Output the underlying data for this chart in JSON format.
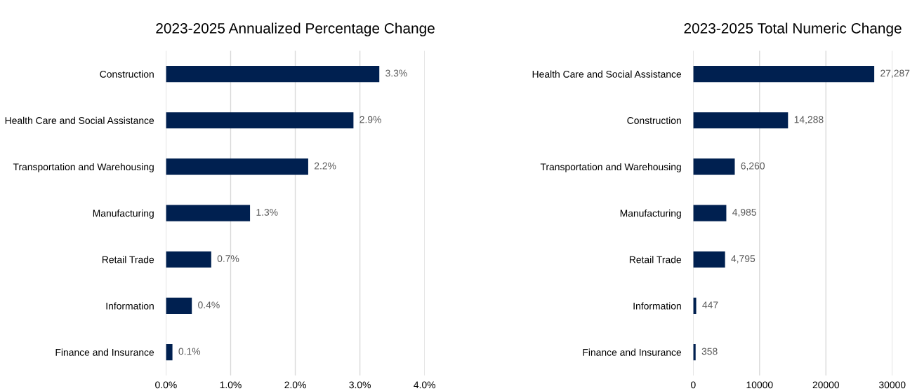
{
  "chart_data": [
    {
      "type": "bar",
      "orientation": "horizontal",
      "title": "2023-2025 Annualized Percentage Change",
      "categories": [
        "Construction",
        "Health Care and Social Assistance",
        "Transportation and Warehousing",
        "Manufacturing",
        "Retail Trade",
        "Information",
        "Finance and Insurance"
      ],
      "values": [
        3.3,
        2.9,
        2.2,
        1.3,
        0.7,
        0.4,
        0.1
      ],
      "value_labels": [
        "3.3%",
        "2.9%",
        "2.2%",
        "1.3%",
        "0.7%",
        "0.4%",
        "0.1%"
      ],
      "color": "#002050",
      "xlim": [
        0,
        4
      ],
      "xticks": [
        {
          "value": 0,
          "label": "0.0%"
        },
        {
          "value": 1,
          "label": "1.0%"
        },
        {
          "value": 2,
          "label": "2.0%"
        },
        {
          "value": 3,
          "label": "3.0%"
        },
        {
          "value": 4,
          "label": "4.0%"
        }
      ],
      "grid": "x"
    },
    {
      "type": "bar",
      "orientation": "horizontal",
      "title": "2023-2025 Total Numeric Change",
      "categories": [
        "Health Care and Social Assistance",
        "Construction",
        "Transportation and Warehousing",
        "Manufacturing",
        "Retail Trade",
        "Information",
        "Finance and Insurance"
      ],
      "values": [
        27287,
        14288,
        6260,
        4985,
        4795,
        447,
        358
      ],
      "value_labels": [
        "27,287",
        "14,288",
        "6,260",
        "4,985",
        "4,795",
        "447",
        "358"
      ],
      "color": "#002050",
      "xlim": [
        0,
        30000
      ],
      "xticks": [
        0,
        10000,
        20000,
        30000
      ],
      "grid": "x"
    }
  ]
}
